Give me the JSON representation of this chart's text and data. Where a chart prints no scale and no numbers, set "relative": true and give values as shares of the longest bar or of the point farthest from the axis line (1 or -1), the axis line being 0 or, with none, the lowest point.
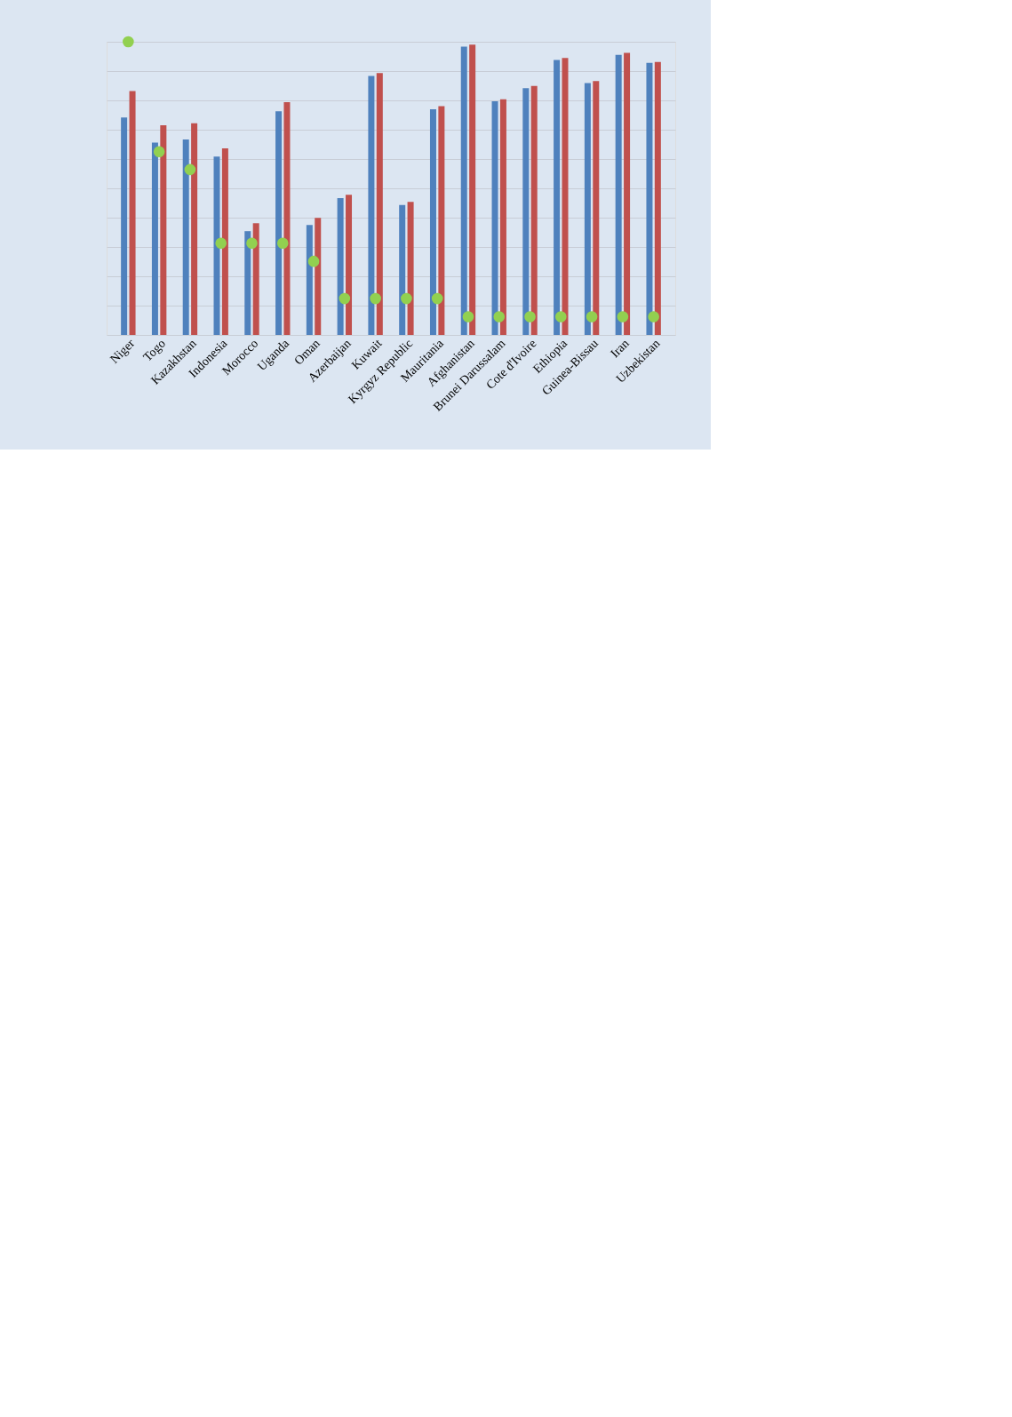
{
  "chart_data": {
    "type": "bar",
    "relative": true,
    "grid": "y",
    "categories": [
      "Niger",
      "Togo",
      "Kazakhstan",
      "Indonesia",
      "Morocco",
      "Uganda",
      "Oman",
      "Azerbaijan",
      "Kuwait",
      "Kyrgyz Republic",
      "Mauritania",
      "Afghanistan",
      "Brunei Darussalam",
      "Cote d'Ivoire",
      "Ethiopia",
      "Guinea-Bissau",
      "Iran",
      "Uzbekistan"
    ],
    "series": [
      {
        "color": "#4f81bd",
        "values": [
          0.742,
          0.656,
          0.667,
          0.608,
          0.354,
          0.763,
          0.375,
          0.467,
          0.883,
          0.443,
          0.77,
          0.983,
          0.797,
          0.842,
          0.938,
          0.859,
          0.955,
          0.928
        ]
      },
      {
        "color": "#c0504d",
        "values": [
          0.832,
          0.715,
          0.722,
          0.636,
          0.381,
          0.794,
          0.399,
          0.478,
          0.893,
          0.454,
          0.78,
          0.99,
          0.804,
          0.849,
          0.945,
          0.866,
          0.962,
          0.931
        ]
      },
      {
        "type": "scatter",
        "color": "#92d050",
        "marker": "circle",
        "values": [
          1.0,
          0.625,
          0.564,
          0.313,
          0.313,
          0.313,
          0.251,
          0.124,
          0.124,
          0.124,
          0.124,
          0.062,
          0.062,
          0.062,
          0.062,
          0.062,
          0.062,
          0.062
        ]
      }
    ]
  }
}
